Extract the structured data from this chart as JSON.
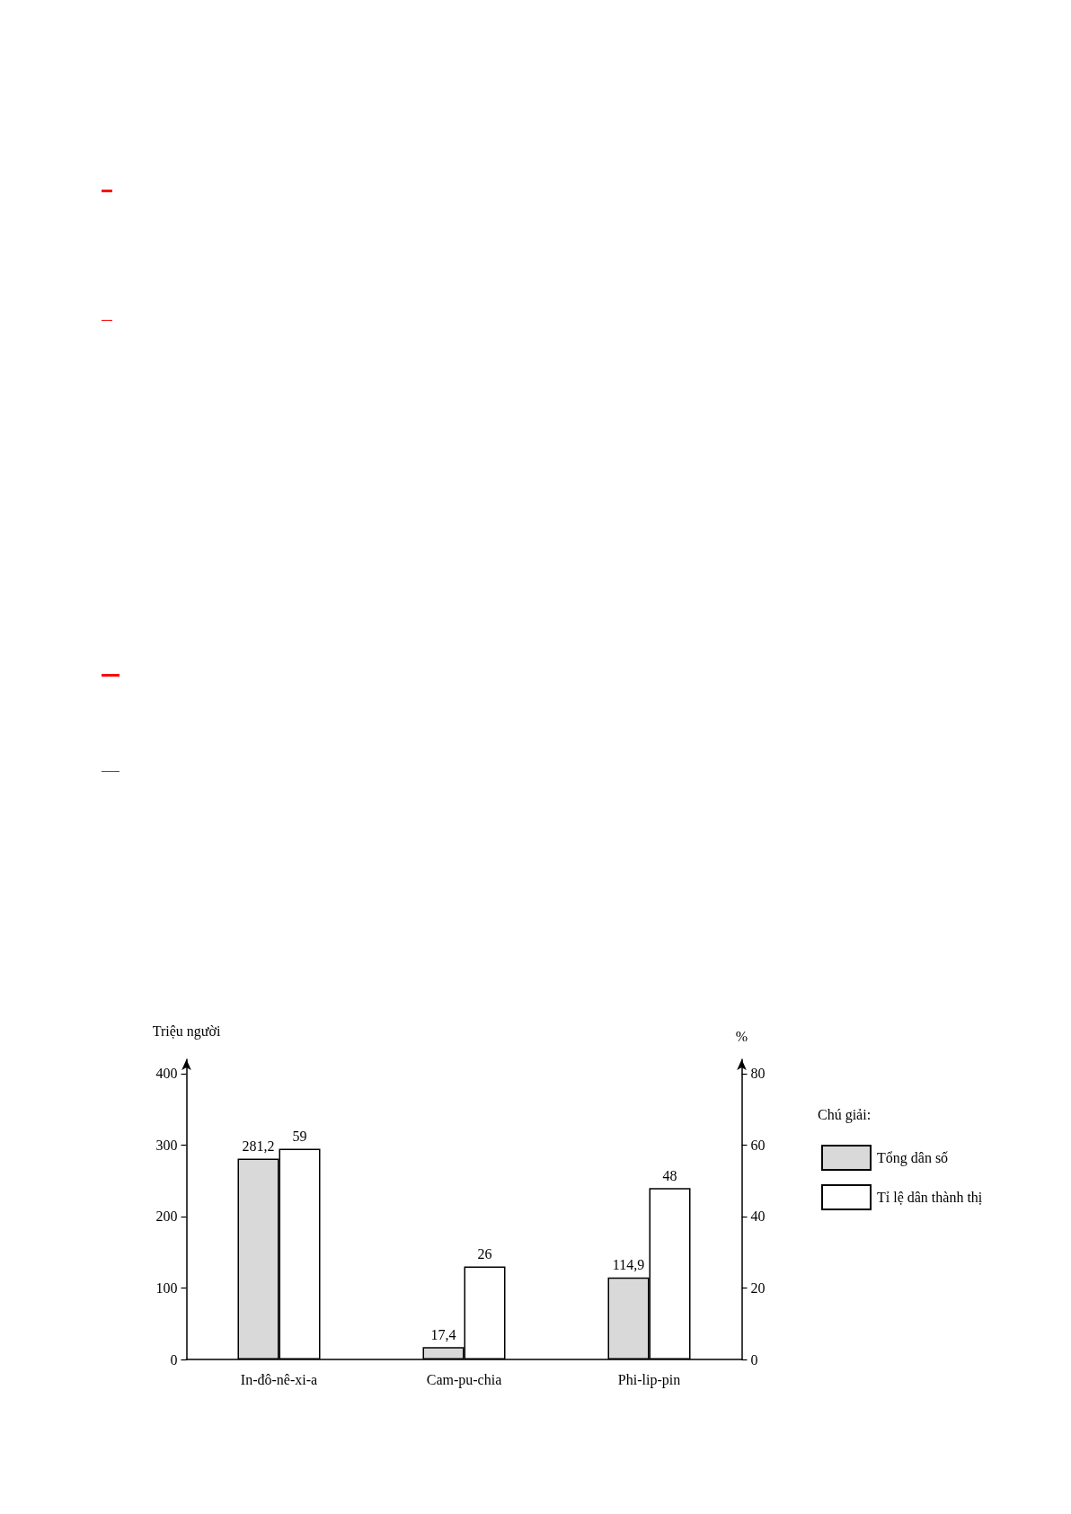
{
  "chart_data": {
    "type": "bar",
    "categories": [
      "In-đô-nê-xi-a",
      "Cam-pu-chia",
      "Phi-lip-pin"
    ],
    "ylabel": "Triệu người",
    "y2label": "%",
    "legend_title": "Chú giải:",
    "series": [
      {
        "name": "Tổng dân số",
        "color": "#d9d9d9",
        "values": [
          281.2,
          17.4,
          114.9
        ],
        "value_labels": [
          "281,2",
          "17,4",
          "114,9"
        ]
      },
      {
        "name": "Tỉ lệ dân thành thị",
        "color": "#ffffff",
        "axis": "y2",
        "values": [
          59,
          26,
          48
        ],
        "value_labels": [
          "59",
          "26",
          "48"
        ]
      }
    ],
    "ylim": [
      0,
      420
    ],
    "yticks": [
      0,
      100,
      200,
      300,
      400
    ],
    "y2lim": [
      0,
      84
    ],
    "y2ticks": [
      0,
      20,
      40,
      60,
      80
    ],
    "grid": false,
    "legend": "right"
  }
}
